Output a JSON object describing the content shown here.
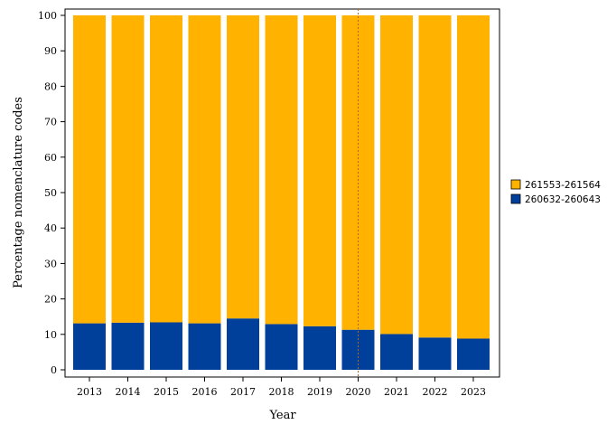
{
  "chart_data": {
    "type": "bar",
    "stacked": true,
    "categories": [
      "2013",
      "2014",
      "2015",
      "2016",
      "2017",
      "2018",
      "2019",
      "2020",
      "2021",
      "2022",
      "2023"
    ],
    "series": [
      {
        "name": "260632-260643",
        "color": "#003F9A",
        "values": [
          13.1,
          13.3,
          13.4,
          13.1,
          14.5,
          12.9,
          12.3,
          11.3,
          10.1,
          9.1,
          8.8
        ]
      },
      {
        "name": "261553-261564",
        "color": "#FFB300",
        "values": [
          86.9,
          86.7,
          86.6,
          86.9,
          85.5,
          87.1,
          87.7,
          88.7,
          89.9,
          90.9,
          91.2
        ]
      }
    ],
    "xlabel": "Year",
    "ylabel": "Percentage nomenclature codes",
    "ylim": [
      0,
      100
    ],
    "yticks": [
      0,
      10,
      20,
      30,
      40,
      50,
      60,
      70,
      80,
      90,
      100
    ],
    "legend_position": "right",
    "reference_line": {
      "x": "2020",
      "style": "dotted",
      "color": "#B5651D"
    },
    "grid": false
  }
}
